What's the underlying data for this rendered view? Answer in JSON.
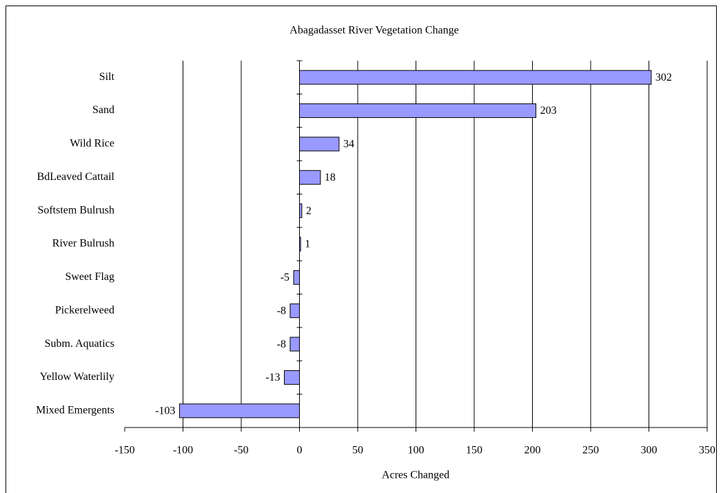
{
  "chart_data": {
    "type": "hbar",
    "title": "Abagadasset River Vegetation Change",
    "x_label": "Acres Changed",
    "categories": [
      "Silt",
      "Sand",
      "Wild Rice",
      "BdLeaved Cattail",
      "Softstem Bulrush",
      "River Bulrush",
      "Sweet Flag",
      "Pickerelweed",
      "Subm. Aquatics",
      "Yellow Waterlily",
      "Mixed Emergents"
    ],
    "values": [
      302,
      203,
      34,
      18,
      2,
      1,
      -5,
      -8,
      -8,
      -13,
      -103
    ],
    "color": "#9999ff",
    "xlim": [
      -150,
      350
    ],
    "xticks": [
      -150,
      -100,
      -50,
      0,
      50,
      100,
      150,
      200,
      250,
      300,
      350
    ],
    "grid": true
  }
}
